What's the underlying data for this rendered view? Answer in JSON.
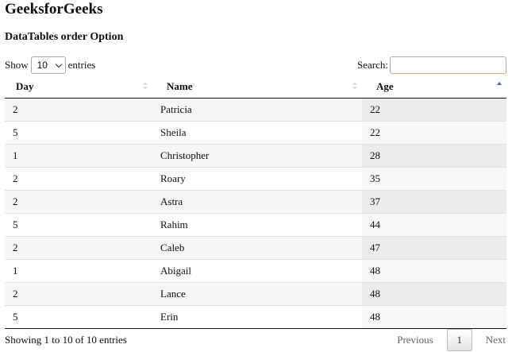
{
  "header": {
    "title": "GeeksforGeeks",
    "subtitle": "DataTables order Option"
  },
  "controls": {
    "show_label": "Show",
    "entries_value": "10",
    "entries_label": "entries",
    "search_label": "Search:",
    "search_value": ""
  },
  "table": {
    "columns": [
      "Day",
      "Name",
      "Age"
    ],
    "sorted_column": "Age",
    "sort_direction": "ascending",
    "rows": [
      {
        "day": "2",
        "name": "Patricia",
        "age": "22"
      },
      {
        "day": "5",
        "name": "Sheila",
        "age": "22"
      },
      {
        "day": "1",
        "name": "Christopher",
        "age": "28"
      },
      {
        "day": "2",
        "name": "Roary",
        "age": "35"
      },
      {
        "day": "2",
        "name": "Astra",
        "age": "37"
      },
      {
        "day": "5",
        "name": "Rahim",
        "age": "44"
      },
      {
        "day": "2",
        "name": "Caleb",
        "age": "47"
      },
      {
        "day": "1",
        "name": "Abigail",
        "age": "48"
      },
      {
        "day": "2",
        "name": "Lance",
        "age": "48"
      },
      {
        "day": "5",
        "name": "Erin",
        "age": "48"
      }
    ]
  },
  "footer": {
    "info": "Showing 1 to 10 of 10 entries",
    "previous": "Previous",
    "current_page": "1",
    "next": "Next"
  },
  "colors": {
    "sort_active": "#3b6fb6",
    "sort_inactive": "#dddddd",
    "search_border": "#c9a97a"
  }
}
